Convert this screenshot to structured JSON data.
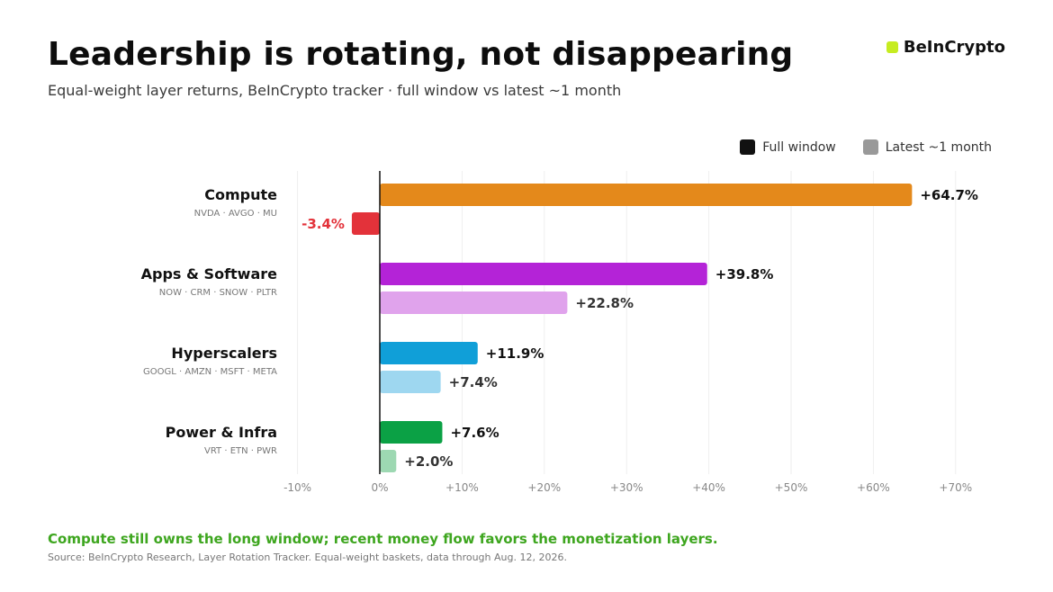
{
  "header": {
    "title": "Leadership is rotating, not disappearing",
    "subtitle": "Equal-weight layer returns, BeInCrypto tracker · full window vs latest ~1 month",
    "brand": "BeInCrypto"
  },
  "colors": {
    "brand_mark": "#c6ec20",
    "negative": "#e3323a",
    "takeaway": "#3ea61f"
  },
  "chart_data": {
    "type": "bar",
    "orientation": "horizontal",
    "categories": [
      "Compute",
      "Apps & Software",
      "Hyperscalers",
      "Power & Infra"
    ],
    "category_tickers": [
      "NVDA · AVGO · MU",
      "NOW · CRM · SNOW · PLTR",
      "GOOGL · AMZN · MSFT · META",
      "VRT · ETN · PWR"
    ],
    "series": [
      {
        "name": "Full window",
        "values": [
          64.7,
          39.8,
          11.9,
          7.6
        ],
        "labels": [
          "+64.7%",
          "+39.8%",
          "+11.9%",
          "+7.6%"
        ],
        "colors": [
          "#e4891b",
          "#b423d7",
          "#109fd8",
          "#0ba145"
        ]
      },
      {
        "name": "Latest ~1 month",
        "values": [
          -3.4,
          22.8,
          7.4,
          2.0
        ],
        "labels": [
          "-3.4%",
          "+22.8%",
          "+7.4%",
          "+2.0%"
        ],
        "colors": [
          "#e3323a",
          "#e0a3ec",
          "#9ed7f0",
          "#9dd8b2"
        ]
      }
    ],
    "legend": {
      "position": "top-right",
      "entries": [
        {
          "label": "Full window",
          "color": "#111111"
        },
        {
          "label": "Latest ~1 month",
          "color": "#999999"
        }
      ]
    },
    "xlim": [
      -10,
      70
    ],
    "xticks": [
      -10,
      0,
      10,
      20,
      30,
      40,
      50,
      60,
      70
    ],
    "xtick_labels": [
      "-10%",
      "0%",
      "+10%",
      "+20%",
      "+30%",
      "+40%",
      "+50%",
      "+60%",
      "+70%"
    ],
    "grid": true
  },
  "footer": {
    "takeaway": "Compute still owns the long window; recent money flow favors the monetization layers.",
    "source": "Source: BeInCrypto Research, Layer Rotation Tracker. Equal-weight baskets, data through Aug. 12, 2026."
  }
}
